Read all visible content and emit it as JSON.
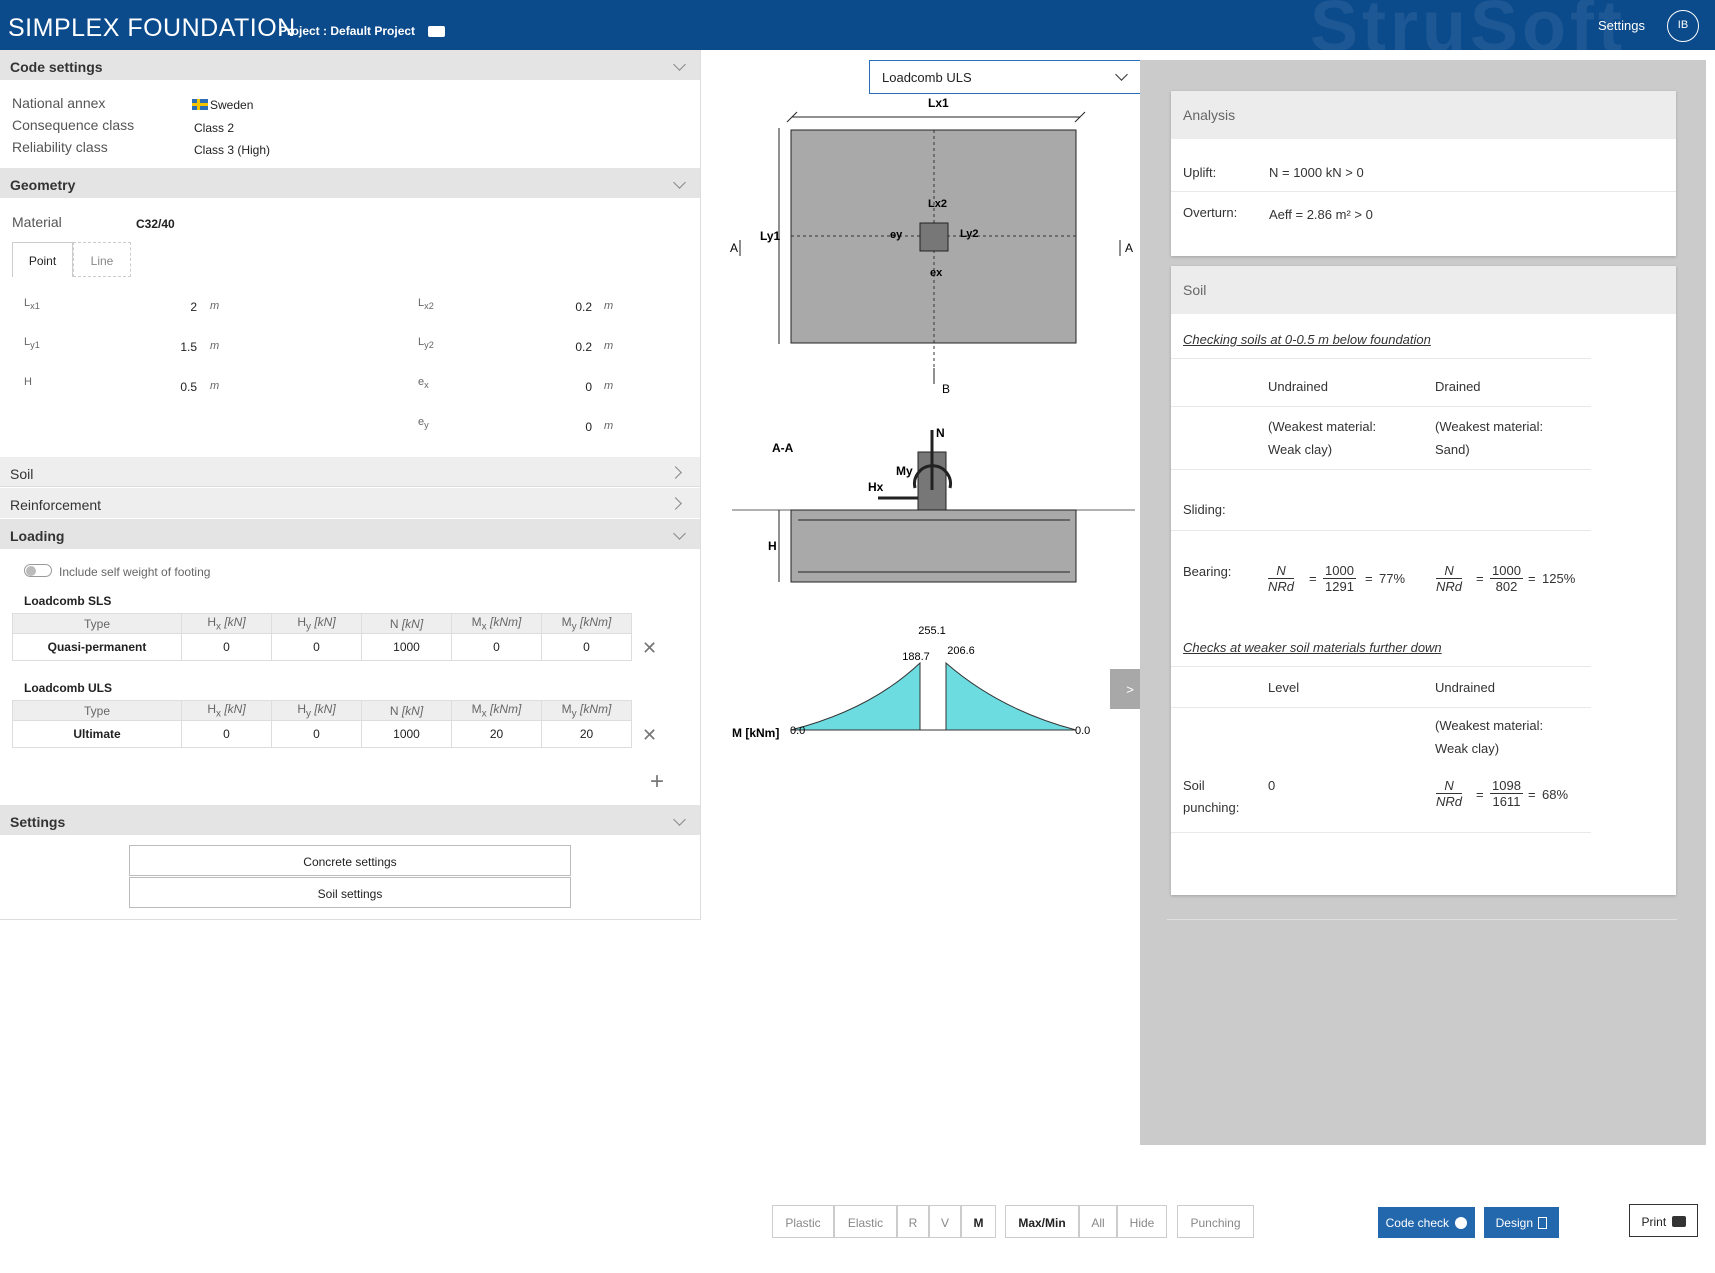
{
  "header": {
    "brand": "SIMPLEX FOUNDATION",
    "project_label": "Project :",
    "project_name": "Default Project",
    "watermark": "StruSoft",
    "settings": "Settings",
    "user_initials": "IB"
  },
  "code_settings": {
    "title": "Code settings",
    "national_annex_label": "National annex",
    "national_annex_value": "Sweden",
    "consequence_label": "Consequence class",
    "consequence_value": "Class 2",
    "reliability_label": "Reliability class",
    "reliability_value": "Class 3 (High)"
  },
  "geometry": {
    "title": "Geometry",
    "material_label": "Material",
    "material_value": "C32/40",
    "tabs": [
      "Point",
      "Line"
    ],
    "params": [
      {
        "label": "Lx1",
        "value": "2",
        "unit": "m"
      },
      {
        "label": "Ly1",
        "value": "1.5",
        "unit": "m"
      },
      {
        "label": "H",
        "value": "0.5",
        "unit": "m"
      },
      {
        "label": "Lx2",
        "value": "0.2",
        "unit": "m"
      },
      {
        "label": "Ly2",
        "value": "0.2",
        "unit": "m"
      },
      {
        "label": "ex",
        "value": "0",
        "unit": "m"
      },
      {
        "label": "ey",
        "value": "0",
        "unit": "m"
      }
    ]
  },
  "soil_section": {
    "title": "Soil"
  },
  "reinforcement_section": {
    "title": "Reinforcement"
  },
  "loading": {
    "title": "Loading",
    "self_weight_label": "Include self weight of footing",
    "columns": [
      "Type",
      "Hx [kN]",
      "Hy [kN]",
      "N [kN]",
      "Mx [kNm]",
      "My [kNm]"
    ],
    "sls": {
      "title": "Loadcomb SLS",
      "row": [
        "Quasi-permanent",
        "0",
        "0",
        "1000",
        "0",
        "0"
      ]
    },
    "uls": {
      "title": "Loadcomb ULS",
      "row": [
        "Ultimate",
        "0",
        "0",
        "1000",
        "20",
        "20"
      ]
    },
    "remove_glyph": "✕",
    "add_glyph": "+"
  },
  "settings_section": {
    "title": "Settings",
    "concrete_button": "Concrete settings",
    "soil_button": "Soil settings"
  },
  "drawing": {
    "loadcomb_select": "Loadcomb ULS",
    "label_lx1": "Lx1",
    "label_ly1": "Ly1",
    "label_lx2": "Lx2",
    "label_ly2": "Ly2",
    "label_ex": "ex",
    "label_ey": "ey",
    "section_a": "A",
    "section_b": "B",
    "section_title": "A-A",
    "label_n": "N",
    "label_my": "My",
    "label_hx": "Hx",
    "label_h": "H",
    "moment_axis": "M [kNm]",
    "moment_left": "0.0",
    "moment_right": "0.0",
    "moment_peak": "255.1",
    "moment_mid_left": "188.7",
    "moment_mid_right": "206.6",
    "expand_glyph": ">"
  },
  "analysis": {
    "title": "Analysis",
    "uplift_label": "Uplift:",
    "uplift_expr": "N  =  1000 kN  >  0",
    "overturn_label": "Overturn:",
    "overturn_expr": "Aeff  =  2.86 m² >  0"
  },
  "soil_results": {
    "title": "Soil",
    "check_title": "Checking soils at 0-0.5 m below foundation",
    "col_undrained": "Undrained",
    "col_drained": "Drained",
    "weak_undrained_1": "(Weakest material:",
    "weak_undrained_2": "Weak clay)",
    "weak_drained_1": "(Weakest material:",
    "weak_drained_2": "Sand)",
    "sliding_label": "Sliding:",
    "bearing_label": "Bearing:",
    "frac_num": "N",
    "frac_den": "NRd",
    "bearing_undrained": {
      "num": "1000",
      "den": "1291",
      "pct": "77%"
    },
    "bearing_drained": {
      "num": "1000",
      "den": "802",
      "pct": "125%"
    },
    "further_title": "Checks at weaker soil materials further down",
    "col_level": "Level",
    "col_undrained2": "Undrained",
    "weak_clay_1": "(Weakest material:",
    "weak_clay_2": "Weak clay)",
    "punching_label_1": "Soil",
    "punching_label_2": "punching:",
    "punching_level": "0",
    "punching": {
      "num": "1098",
      "den": "1611",
      "pct": "68%"
    }
  },
  "toolbar": {
    "buttons": [
      "Plastic",
      "Elastic",
      "R",
      "V",
      "M",
      "Max/Min",
      "All",
      "Hide",
      "Punching"
    ],
    "code_check": "Code check",
    "design": "Design",
    "print": "Print"
  }
}
